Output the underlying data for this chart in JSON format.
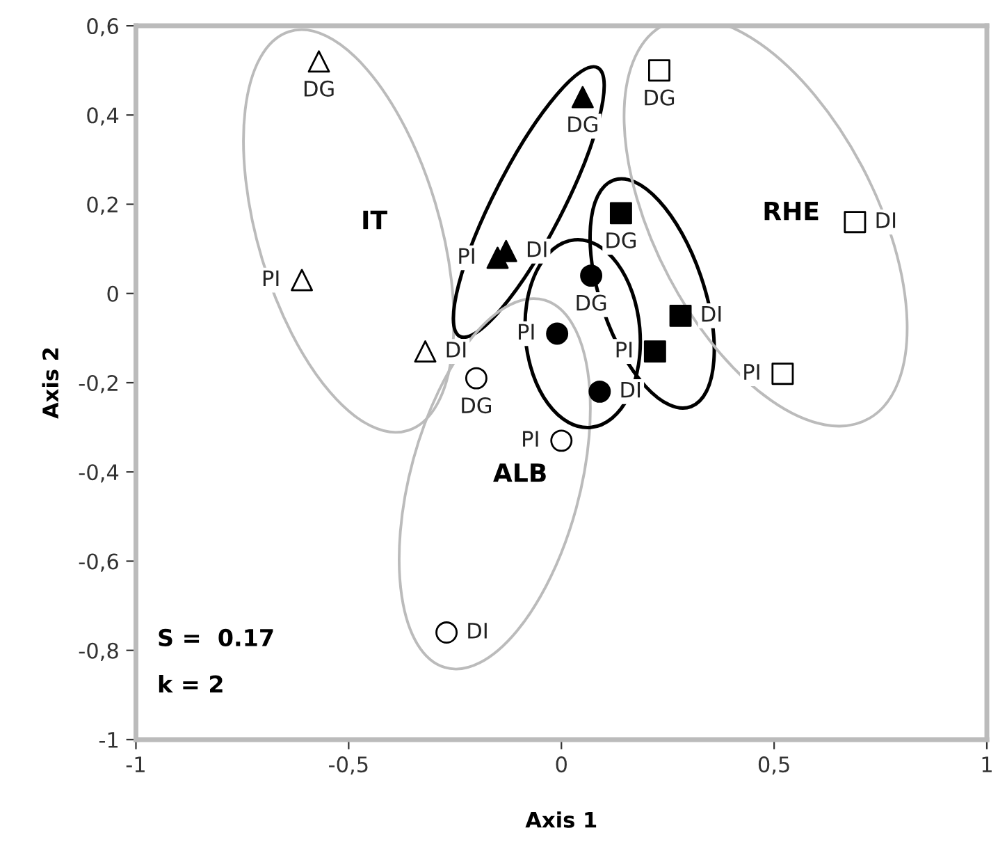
{
  "chart_data": {
    "type": "scatter",
    "xlabel": "Axis 1",
    "ylabel": "Axis 2",
    "xlim": [
      -1,
      1
    ],
    "ylim": [
      -1,
      0.6
    ],
    "xticks": [
      {
        "value": -1,
        "label": "-1"
      },
      {
        "value": -0.5,
        "label": "-0,5"
      },
      {
        "value": 0,
        "label": "0"
      },
      {
        "value": 0.5,
        "label": "0,5"
      },
      {
        "value": 1,
        "label": "1"
      }
    ],
    "yticks": [
      {
        "value": -1,
        "label": "-1"
      },
      {
        "value": -0.8,
        "label": "-0,8"
      },
      {
        "value": -0.6,
        "label": "-0,6"
      },
      {
        "value": -0.4,
        "label": "-0,4"
      },
      {
        "value": -0.2,
        "label": "-0,2"
      },
      {
        "value": 0,
        "label": "0"
      },
      {
        "value": 0.2,
        "label": "0,2"
      },
      {
        "value": 0.4,
        "label": "0,4"
      },
      {
        "value": 0.6,
        "label": "0,6"
      }
    ],
    "grid": false,
    "legend": false,
    "series": [
      {
        "name": "IT",
        "marker": "triangle",
        "color": "#ffffff",
        "x": [
          -0.57,
          -0.61,
          -0.32
        ],
        "values": [
          0.52,
          0.03,
          -0.13
        ],
        "value_labels": [
          "DG",
          "PI",
          "DI"
        ]
      },
      {
        "marker": "triangle",
        "color": "#000000",
        "x": [
          0.05,
          -0.15,
          -0.13
        ],
        "values": [
          0.44,
          0.08,
          0.095
        ],
        "value_labels": [
          "DG",
          "PI",
          "DI"
        ]
      },
      {
        "name": "ALB",
        "marker": "circle",
        "color": "#ffffff",
        "x": [
          -0.2,
          0.0,
          -0.27
        ],
        "values": [
          -0.19,
          -0.33,
          -0.76
        ],
        "value_labels": [
          "DG",
          "PI",
          "DI"
        ]
      },
      {
        "marker": "circle",
        "color": "#000000",
        "x": [
          0.07,
          -0.01,
          0.09
        ],
        "values": [
          0.04,
          -0.09,
          -0.22
        ],
        "value_labels": [
          "DG",
          "PI",
          "DI"
        ]
      },
      {
        "marker": "square",
        "color": "#000000",
        "x": [
          0.14,
          0.22,
          0.28
        ],
        "values": [
          0.18,
          -0.13,
          -0.05
        ],
        "value_labels": [
          "DG",
          "PI",
          "DI"
        ]
      },
      {
        "name": "RHE",
        "marker": "square",
        "color": "#ffffff",
        "x": [
          0.23,
          0.52,
          0.69
        ],
        "values": [
          0.5,
          -0.18,
          0.16
        ],
        "value_labels": [
          "DG",
          "PI",
          "DI"
        ]
      }
    ],
    "annotations": [
      "S =  0.17",
      "k = 2"
    ]
  }
}
